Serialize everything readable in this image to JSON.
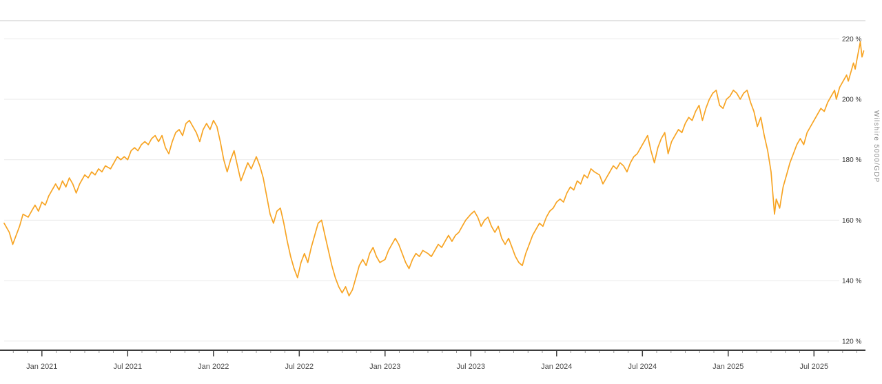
{
  "colors": {
    "line": "#F7A423",
    "grid": "#e9e9e9",
    "top_border": "#c9c9c9",
    "axis": "#3c3c3c",
    "minor_tick": "#999999",
    "x_tick_label": "#4a4a4a",
    "y_tick_label": "#333333",
    "axis_title": "#8a8a8a",
    "background": "#ffffff"
  },
  "chart_data": {
    "type": "line",
    "title": "",
    "ylabel": "Wilshire 5000/GDP",
    "legend": "none",
    "grid": "horizontal",
    "x_range": [
      2020.78,
      2025.8
    ],
    "y_range": [
      117,
      226
    ],
    "x_ticks": [
      {
        "pos": 2021.0,
        "label": "Jan 2021"
      },
      {
        "pos": 2021.5,
        "label": "Jul 2021"
      },
      {
        "pos": 2022.0,
        "label": "Jan 2022"
      },
      {
        "pos": 2022.5,
        "label": "Jul 2022"
      },
      {
        "pos": 2023.0,
        "label": "Jan 2023"
      },
      {
        "pos": 2023.5,
        "label": "Jul 2023"
      },
      {
        "pos": 2024.0,
        "label": "Jan 2024"
      },
      {
        "pos": 2024.5,
        "label": "Jul 2024"
      },
      {
        "pos": 2025.0,
        "label": "Jan 2025"
      },
      {
        "pos": 2025.5,
        "label": "Jul 2025"
      }
    ],
    "y_ticks": [
      {
        "value": 120,
        "label": "120 %"
      },
      {
        "value": 140,
        "label": "140 %"
      },
      {
        "value": 160,
        "label": "160 %"
      },
      {
        "value": 180,
        "label": "180 %"
      },
      {
        "value": 200,
        "label": "200 %"
      },
      {
        "value": 220,
        "label": "220 %"
      }
    ],
    "series": [
      {
        "name": "Wilshire 5000/GDP",
        "unit": "%",
        "color": "#F7A423",
        "points": [
          [
            2020.78,
            159
          ],
          [
            2020.81,
            156
          ],
          [
            2020.83,
            152
          ],
          [
            2020.85,
            155
          ],
          [
            2020.87,
            158
          ],
          [
            2020.89,
            162
          ],
          [
            2020.92,
            161
          ],
          [
            2020.94,
            163
          ],
          [
            2020.96,
            165
          ],
          [
            2020.98,
            163
          ],
          [
            2021.0,
            166
          ],
          [
            2021.02,
            165
          ],
          [
            2021.04,
            168
          ],
          [
            2021.06,
            170
          ],
          [
            2021.08,
            172
          ],
          [
            2021.1,
            170
          ],
          [
            2021.12,
            173
          ],
          [
            2021.14,
            171
          ],
          [
            2021.16,
            174
          ],
          [
            2021.18,
            172
          ],
          [
            2021.2,
            169
          ],
          [
            2021.22,
            172
          ],
          [
            2021.25,
            175
          ],
          [
            2021.27,
            174
          ],
          [
            2021.29,
            176
          ],
          [
            2021.31,
            175
          ],
          [
            2021.33,
            177
          ],
          [
            2021.35,
            176
          ],
          [
            2021.37,
            178
          ],
          [
            2021.4,
            177
          ],
          [
            2021.42,
            179
          ],
          [
            2021.44,
            181
          ],
          [
            2021.46,
            180
          ],
          [
            2021.48,
            181
          ],
          [
            2021.5,
            180
          ],
          [
            2021.52,
            183
          ],
          [
            2021.54,
            184
          ],
          [
            2021.56,
            183
          ],
          [
            2021.58,
            185
          ],
          [
            2021.6,
            186
          ],
          [
            2021.62,
            185
          ],
          [
            2021.64,
            187
          ],
          [
            2021.66,
            188
          ],
          [
            2021.68,
            186
          ],
          [
            2021.7,
            188
          ],
          [
            2021.72,
            184
          ],
          [
            2021.74,
            182
          ],
          [
            2021.76,
            186
          ],
          [
            2021.78,
            189
          ],
          [
            2021.8,
            190
          ],
          [
            2021.82,
            188
          ],
          [
            2021.84,
            192
          ],
          [
            2021.86,
            193
          ],
          [
            2021.88,
            191
          ],
          [
            2021.9,
            189
          ],
          [
            2021.92,
            186
          ],
          [
            2021.94,
            190
          ],
          [
            2021.96,
            192
          ],
          [
            2021.98,
            190
          ],
          [
            2022.0,
            193
          ],
          [
            2022.02,
            191
          ],
          [
            2022.04,
            186
          ],
          [
            2022.06,
            180
          ],
          [
            2022.08,
            176
          ],
          [
            2022.1,
            180
          ],
          [
            2022.12,
            183
          ],
          [
            2022.14,
            178
          ],
          [
            2022.16,
            173
          ],
          [
            2022.18,
            176
          ],
          [
            2022.2,
            179
          ],
          [
            2022.22,
            177
          ],
          [
            2022.25,
            181
          ],
          [
            2022.27,
            178
          ],
          [
            2022.29,
            174
          ],
          [
            2022.31,
            168
          ],
          [
            2022.33,
            162
          ],
          [
            2022.35,
            159
          ],
          [
            2022.37,
            163
          ],
          [
            2022.39,
            164
          ],
          [
            2022.41,
            159
          ],
          [
            2022.43,
            153
          ],
          [
            2022.45,
            148
          ],
          [
            2022.47,
            144
          ],
          [
            2022.49,
            141
          ],
          [
            2022.51,
            146
          ],
          [
            2022.53,
            149
          ],
          [
            2022.55,
            146
          ],
          [
            2022.57,
            151
          ],
          [
            2022.59,
            155
          ],
          [
            2022.61,
            159
          ],
          [
            2022.63,
            160
          ],
          [
            2022.65,
            155
          ],
          [
            2022.67,
            150
          ],
          [
            2022.69,
            145
          ],
          [
            2022.71,
            141
          ],
          [
            2022.73,
            138
          ],
          [
            2022.75,
            136
          ],
          [
            2022.77,
            138
          ],
          [
            2022.79,
            135
          ],
          [
            2022.81,
            137
          ],
          [
            2022.83,
            141
          ],
          [
            2022.85,
            145
          ],
          [
            2022.87,
            147
          ],
          [
            2022.89,
            145
          ],
          [
            2022.91,
            149
          ],
          [
            2022.93,
            151
          ],
          [
            2022.95,
            148
          ],
          [
            2022.97,
            146
          ],
          [
            2023.0,
            147
          ],
          [
            2023.02,
            150
          ],
          [
            2023.04,
            152
          ],
          [
            2023.06,
            154
          ],
          [
            2023.08,
            152
          ],
          [
            2023.1,
            149
          ],
          [
            2023.12,
            146
          ],
          [
            2023.14,
            144
          ],
          [
            2023.16,
            147
          ],
          [
            2023.18,
            149
          ],
          [
            2023.2,
            148
          ],
          [
            2023.22,
            150
          ],
          [
            2023.25,
            149
          ],
          [
            2023.27,
            148
          ],
          [
            2023.29,
            150
          ],
          [
            2023.31,
            152
          ],
          [
            2023.33,
            151
          ],
          [
            2023.35,
            153
          ],
          [
            2023.37,
            155
          ],
          [
            2023.39,
            153
          ],
          [
            2023.41,
            155
          ],
          [
            2023.43,
            156
          ],
          [
            2023.45,
            158
          ],
          [
            2023.47,
            160
          ],
          [
            2023.5,
            162
          ],
          [
            2023.52,
            163
          ],
          [
            2023.54,
            161
          ],
          [
            2023.56,
            158
          ],
          [
            2023.58,
            160
          ],
          [
            2023.6,
            161
          ],
          [
            2023.62,
            158
          ],
          [
            2023.64,
            156
          ],
          [
            2023.66,
            158
          ],
          [
            2023.68,
            154
          ],
          [
            2023.7,
            152
          ],
          [
            2023.72,
            154
          ],
          [
            2023.74,
            151
          ],
          [
            2023.76,
            148
          ],
          [
            2023.78,
            146
          ],
          [
            2023.8,
            145
          ],
          [
            2023.82,
            149
          ],
          [
            2023.84,
            152
          ],
          [
            2023.86,
            155
          ],
          [
            2023.88,
            157
          ],
          [
            2023.9,
            159
          ],
          [
            2023.92,
            158
          ],
          [
            2023.94,
            161
          ],
          [
            2023.96,
            163
          ],
          [
            2023.98,
            164
          ],
          [
            2024.0,
            166
          ],
          [
            2024.02,
            167
          ],
          [
            2024.04,
            166
          ],
          [
            2024.06,
            169
          ],
          [
            2024.08,
            171
          ],
          [
            2024.1,
            170
          ],
          [
            2024.12,
            173
          ],
          [
            2024.14,
            172
          ],
          [
            2024.16,
            175
          ],
          [
            2024.18,
            174
          ],
          [
            2024.2,
            177
          ],
          [
            2024.22,
            176
          ],
          [
            2024.25,
            175
          ],
          [
            2024.27,
            172
          ],
          [
            2024.29,
            174
          ],
          [
            2024.31,
            176
          ],
          [
            2024.33,
            178
          ],
          [
            2024.35,
            177
          ],
          [
            2024.37,
            179
          ],
          [
            2024.39,
            178
          ],
          [
            2024.41,
            176
          ],
          [
            2024.43,
            179
          ],
          [
            2024.45,
            181
          ],
          [
            2024.47,
            182
          ],
          [
            2024.49,
            184
          ],
          [
            2024.51,
            186
          ],
          [
            2024.53,
            188
          ],
          [
            2024.55,
            183
          ],
          [
            2024.57,
            179
          ],
          [
            2024.59,
            184
          ],
          [
            2024.61,
            187
          ],
          [
            2024.63,
            189
          ],
          [
            2024.65,
            182
          ],
          [
            2024.67,
            186
          ],
          [
            2024.69,
            188
          ],
          [
            2024.71,
            190
          ],
          [
            2024.73,
            189
          ],
          [
            2024.75,
            192
          ],
          [
            2024.77,
            194
          ],
          [
            2024.79,
            193
          ],
          [
            2024.81,
            196
          ],
          [
            2024.83,
            198
          ],
          [
            2024.85,
            193
          ],
          [
            2024.87,
            197
          ],
          [
            2024.89,
            200
          ],
          [
            2024.91,
            202
          ],
          [
            2024.93,
            203
          ],
          [
            2024.95,
            198
          ],
          [
            2024.97,
            197
          ],
          [
            2024.99,
            200
          ],
          [
            2025.01,
            201
          ],
          [
            2025.03,
            203
          ],
          [
            2025.05,
            202
          ],
          [
            2025.07,
            200
          ],
          [
            2025.09,
            202
          ],
          [
            2025.11,
            203
          ],
          [
            2025.13,
            199
          ],
          [
            2025.15,
            196
          ],
          [
            2025.17,
            191
          ],
          [
            2025.19,
            194
          ],
          [
            2025.21,
            188
          ],
          [
            2025.23,
            183
          ],
          [
            2025.25,
            176
          ],
          [
            2025.27,
            162
          ],
          [
            2025.28,
            167
          ],
          [
            2025.3,
            164
          ],
          [
            2025.32,
            171
          ],
          [
            2025.34,
            175
          ],
          [
            2025.36,
            179
          ],
          [
            2025.38,
            182
          ],
          [
            2025.4,
            185
          ],
          [
            2025.42,
            187
          ],
          [
            2025.44,
            185
          ],
          [
            2025.46,
            189
          ],
          [
            2025.48,
            191
          ],
          [
            2025.5,
            193
          ],
          [
            2025.52,
            195
          ],
          [
            2025.54,
            197
          ],
          [
            2025.56,
            196
          ],
          [
            2025.58,
            199
          ],
          [
            2025.6,
            201
          ],
          [
            2025.62,
            203
          ],
          [
            2025.63,
            200
          ],
          [
            2025.65,
            204
          ],
          [
            2025.67,
            206
          ],
          [
            2025.69,
            208
          ],
          [
            2025.7,
            206
          ],
          [
            2025.72,
            210
          ],
          [
            2025.73,
            212
          ],
          [
            2025.74,
            210
          ],
          [
            2025.75,
            213
          ],
          [
            2025.76,
            216
          ],
          [
            2025.77,
            219
          ],
          [
            2025.78,
            214
          ],
          [
            2025.79,
            216
          ]
        ]
      }
    ]
  }
}
